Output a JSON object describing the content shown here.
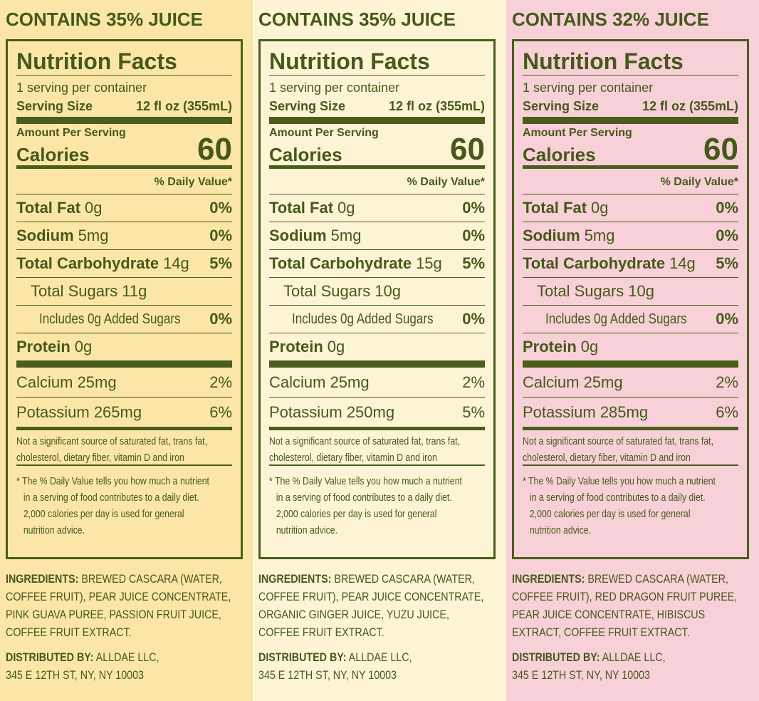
{
  "panels": [
    {
      "juice": "CONTAINS 35% JUICE",
      "title": "Nutrition Facts",
      "servings": "1 serving per container",
      "serving_size_label": "Serving Size",
      "serving_size": "12 fl oz (355mL)",
      "amount_per_serving": "Amount Per Serving",
      "calories_label": "Calories",
      "calories": "60",
      "dv_header": "% Daily Value*",
      "nutrients": [
        {
          "name": "Total Fat",
          "amount": "0g",
          "dv": "0%"
        },
        {
          "name": "Sodium",
          "amount": "5mg",
          "dv": "0%"
        },
        {
          "name": "Total Carbohydrate",
          "amount": "14g",
          "dv": "5%"
        },
        {
          "name": "Total Sugars",
          "amount": "11g"
        },
        {
          "name": "Includes 0g Added Sugars",
          "dv": "0%"
        },
        {
          "name": "Protein",
          "amount": "0g"
        }
      ],
      "minerals": [
        {
          "name": "Calcium 25mg",
          "dv": "2%"
        },
        {
          "name": "Potassium 265mg",
          "dv": "6%"
        }
      ],
      "footnote1": [
        "Not a significant source of saturated fat, trans fat,",
        "cholesterol, dietary fiber, vitamin D and iron"
      ],
      "footnote2": [
        "* The % Daily Value tells you how much a nutrient",
        "in a serving of food contributes to a daily diet.",
        "2,000 calories per day is used for general",
        "nutrition advice."
      ],
      "ingredients_label": "INGREDIENTS:",
      "ingredients": [
        "BREWED CASCARA (WATER,",
        "COFFEE FRUIT), PEAR JUICE CONCENTRATE,",
        "PINK GUAVA PUREE, PASSION FRUIT JUICE,",
        "COFFEE FRUIT EXTRACT."
      ],
      "distributed_label": "DISTRIBUTED BY:",
      "distributed": [
        "ALLDAE LLC,",
        "345 E 12TH ST, NY, NY 10003"
      ]
    },
    {
      "juice": "CONTAINS 35% JUICE",
      "title": "Nutrition Facts",
      "servings": "1 serving per container",
      "serving_size_label": "Serving Size",
      "serving_size": "12 fl oz (355mL)",
      "amount_per_serving": "Amount Per Serving",
      "calories_label": "Calories",
      "calories": "60",
      "dv_header": "% Daily Value*",
      "nutrients": [
        {
          "name": "Total Fat",
          "amount": "0g",
          "dv": "0%"
        },
        {
          "name": "Sodium",
          "amount": "5mg",
          "dv": "0%"
        },
        {
          "name": "Total Carbohydrate",
          "amount": "15g",
          "dv": "5%"
        },
        {
          "name": "Total Sugars",
          "amount": "10g"
        },
        {
          "name": "Includes 0g Added Sugars",
          "dv": "0%"
        },
        {
          "name": "Protein",
          "amount": "0g"
        }
      ],
      "minerals": [
        {
          "name": "Calcium 25mg",
          "dv": "2%"
        },
        {
          "name": "Potassium 250mg",
          "dv": "5%"
        }
      ],
      "footnote1": [
        "Not a significant source of saturated fat, trans fat,",
        "cholesterol, dietary fiber, vitamin D and iron"
      ],
      "footnote2": [
        "* The % Daily Value tells you how much a nutrient",
        "in a serving of food contributes to a daily diet.",
        "2,000 calories per day is used for general",
        "nutrition advice."
      ],
      "ingredients_label": "INGREDIENTS:",
      "ingredients": [
        "BREWED CASCARA (WATER,",
        "COFFEE FRUIT), PEAR JUICE CONCENTRATE,",
        "ORGANIC GINGER JUICE, YUZU JUICE,",
        "COFFEE FRUIT EXTRACT."
      ],
      "distributed_label": "DISTRIBUTED BY:",
      "distributed": [
        "ALLDAE LLC,",
        "345 E 12TH ST, NY, NY 10003"
      ]
    },
    {
      "juice": "CONTAINS 32% JUICE",
      "title": "Nutrition Facts",
      "servings": "1 serving per container",
      "serving_size_label": "Serving Size",
      "serving_size": "12 fl oz (355mL)",
      "amount_per_serving": "Amount Per Serving",
      "calories_label": "Calories",
      "calories": "60",
      "dv_header": "% Daily Value*",
      "nutrients": [
        {
          "name": "Total Fat",
          "amount": "0g",
          "dv": "0%"
        },
        {
          "name": "Sodium",
          "amount": "5mg",
          "dv": "0%"
        },
        {
          "name": "Total Carbohydrate",
          "amount": "14g",
          "dv": "5%"
        },
        {
          "name": "Total Sugars",
          "amount": "10g"
        },
        {
          "name": "Includes 0g Added Sugars",
          "dv": "0%"
        },
        {
          "name": "Protein",
          "amount": "0g"
        }
      ],
      "minerals": [
        {
          "name": "Calcium 25mg",
          "dv": "2%"
        },
        {
          "name": "Potassium 285mg",
          "dv": "6%"
        }
      ],
      "footnote1": [
        "Not a significant source of saturated fat, trans fat,",
        "cholesterol, dietary fiber, vitamin D and iron"
      ],
      "footnote2": [
        "* The % Daily Value tells you how much a nutrient",
        "in a serving of food contributes to a daily diet.",
        "2,000 calories per day is used for general",
        "nutrition advice."
      ],
      "ingredients_label": "INGREDIENTS:",
      "ingredients": [
        "BREWED CASCARA (WATER,",
        "COFFEE FRUIT), RED DRAGON FRUIT PUREE,",
        "PEAR JUICE CONCENTRATE, HIBISCUS",
        "EXTRACT, COFFEE FRUIT EXTRACT."
      ],
      "distributed_label": "DISTRIBUTED BY:",
      "distributed": [
        "ALLDAE LLC,",
        "345 E 12TH ST, NY, NY 10003"
      ]
    }
  ]
}
